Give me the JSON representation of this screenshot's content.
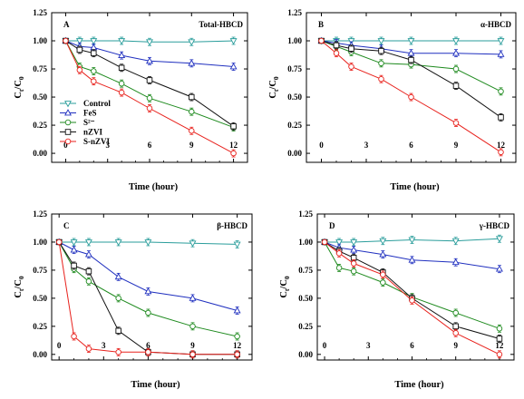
{
  "ylabel_main": "C",
  "ylabel_sub1": "t",
  "ylabel_slash": "/C",
  "ylabel_sub2": "0",
  "xlabel": "Time (hour)",
  "x_ticks": [
    "0",
    "3",
    "6",
    "9",
    "12"
  ],
  "y_ticks": [
    "0.00",
    "0.25",
    "0.50",
    "0.75",
    "1.00",
    "1.25"
  ],
  "legend": [
    "Control",
    "FeS",
    "S²⁻",
    "nZVI",
    "S-nZVI"
  ],
  "series_styles": [
    {
      "color": "#2a9d9b",
      "marker": "triangle-down"
    },
    {
      "color": "#1f2fbf",
      "marker": "triangle-up"
    },
    {
      "color": "#1e8a1e",
      "marker": "circle"
    },
    {
      "color": "#111111",
      "marker": "square"
    },
    {
      "color": "#e8221d",
      "marker": "circle"
    }
  ],
  "chart_data": [
    {
      "type": "line",
      "letter": "A",
      "title": "Total-HBCD",
      "x": [
        0,
        1,
        2,
        4,
        6,
        9,
        12
      ],
      "xlim": [
        -1,
        13
      ],
      "ylim": [
        -0.08,
        1.25
      ],
      "series": [
        {
          "name": "Control",
          "values": [
            1.0,
            1.0,
            1.0,
            1.0,
            0.99,
            0.99,
            1.0
          ]
        },
        {
          "name": "FeS",
          "values": [
            1.0,
            0.95,
            0.94,
            0.87,
            0.82,
            0.8,
            0.77
          ]
        },
        {
          "name": "S²⁻",
          "values": [
            1.0,
            0.77,
            0.73,
            0.62,
            0.49,
            0.37,
            0.23
          ]
        },
        {
          "name": "nZVI",
          "values": [
            1.0,
            0.92,
            0.89,
            0.76,
            0.65,
            0.5,
            0.24
          ]
        },
        {
          "name": "S-nZVI",
          "values": [
            1.0,
            0.74,
            0.64,
            0.54,
            0.4,
            0.2,
            0.0
          ]
        }
      ]
    },
    {
      "type": "line",
      "letter": "B",
      "title": "α-HBCD",
      "x": [
        0,
        1,
        2,
        4,
        6,
        9,
        12
      ],
      "xlim": [
        -1,
        13
      ],
      "ylim": [
        -0.08,
        1.25
      ],
      "series": [
        {
          "name": "Control",
          "values": [
            1.0,
            1.0,
            1.0,
            1.0,
            1.0,
            1.0,
            1.0
          ]
        },
        {
          "name": "FeS",
          "values": [
            1.0,
            0.98,
            0.96,
            0.93,
            0.89,
            0.89,
            0.88
          ]
        },
        {
          "name": "S²⁻",
          "values": [
            1.0,
            0.95,
            0.9,
            0.8,
            0.79,
            0.75,
            0.55
          ]
        },
        {
          "name": "nZVI",
          "values": [
            1.0,
            0.96,
            0.93,
            0.91,
            0.83,
            0.6,
            0.32
          ]
        },
        {
          "name": "S-nZVI",
          "values": [
            1.0,
            0.89,
            0.77,
            0.66,
            0.5,
            0.27,
            0.01
          ]
        }
      ]
    },
    {
      "type": "line",
      "letter": "C",
      "title": "β-HBCD",
      "x": [
        0,
        1,
        2,
        4,
        6,
        9,
        12
      ],
      "xlim": [
        -0.5,
        13
      ],
      "ylim": [
        -0.05,
        1.25
      ],
      "series": [
        {
          "name": "Control",
          "values": [
            1.0,
            1.0,
            1.0,
            1.0,
            1.0,
            0.99,
            0.98
          ]
        },
        {
          "name": "FeS",
          "values": [
            1.0,
            0.93,
            0.89,
            0.69,
            0.56,
            0.5,
            0.39
          ]
        },
        {
          "name": "S²⁻",
          "values": [
            1.0,
            0.76,
            0.65,
            0.5,
            0.37,
            0.25,
            0.16
          ]
        },
        {
          "name": "nZVI",
          "values": [
            1.0,
            0.79,
            0.74,
            0.21,
            0.02,
            0.0,
            0.0
          ]
        },
        {
          "name": "S-nZVI",
          "values": [
            1.0,
            0.16,
            0.05,
            0.02,
            0.02,
            0.0,
            0.0
          ]
        }
      ]
    },
    {
      "type": "line",
      "letter": "D",
      "title": "γ-HBCD",
      "x": [
        0,
        1,
        2,
        4,
        6,
        9,
        12
      ],
      "xlim": [
        -0.5,
        13
      ],
      "ylim": [
        -0.05,
        1.25
      ],
      "series": [
        {
          "name": "Control",
          "values": [
            1.0,
            1.0,
            1.0,
            1.01,
            1.02,
            1.01,
            1.03
          ]
        },
        {
          "name": "FeS",
          "values": [
            1.0,
            0.95,
            0.93,
            0.89,
            0.84,
            0.82,
            0.76
          ]
        },
        {
          "name": "S²⁻",
          "values": [
            1.0,
            0.77,
            0.74,
            0.64,
            0.51,
            0.37,
            0.23
          ]
        },
        {
          "name": "nZVI",
          "values": [
            1.0,
            0.92,
            0.86,
            0.73,
            0.5,
            0.25,
            0.14
          ]
        },
        {
          "name": "S-nZVI",
          "values": [
            1.0,
            0.9,
            0.81,
            0.71,
            0.48,
            0.19,
            0.0
          ]
        }
      ]
    }
  ]
}
